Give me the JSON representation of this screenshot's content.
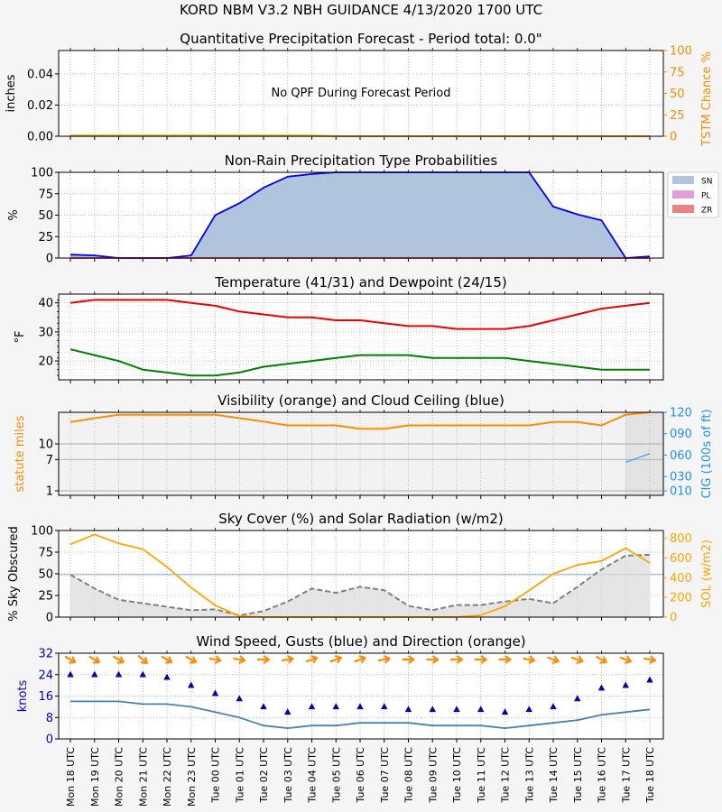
{
  "title": "KORD   NBM V3.2 NBH GUIDANCE    4/13/2020  1700 UTC",
  "x_labels": [
    "Mon 18 UTC",
    "Mon 19 UTC",
    "Mon 20 UTC",
    "Mon 21 UTC",
    "Mon 22 UTC",
    "Mon 23 UTC",
    "Tue 00 UTC",
    "Tue 01 UTC",
    "Tue 02 UTC",
    "Tue 03 UTC",
    "Tue 04 UTC",
    "Tue 05 UTC",
    "Tue 06 UTC",
    "Tue 07 UTC",
    "Tue 08 UTC",
    "Tue 09 UTC",
    "Tue 10 UTC",
    "Tue 11 UTC",
    "Tue 12 UTC",
    "Tue 13 UTC",
    "Tue 14 UTC",
    "Tue 15 UTC",
    "Tue 16 UTC",
    "Tue 17 UTC",
    "Tue 18 UTC"
  ],
  "colors": {
    "red": "#ee0000",
    "green": "#008000",
    "blue": "#0000ee",
    "orange": "#ff8c00",
    "steel": "#4682b4",
    "sn": "#b0c4de",
    "pl": "#dda0dd",
    "zr": "#f08080",
    "dodger": "#1e90ff",
    "grey": "#808080"
  },
  "chart_data": [
    {
      "type": "line",
      "title": "Quantitative Precipitation Forecast - Period total: 0.0\"",
      "ylabel": "inches",
      "y2label": "TSTM Chance %",
      "ylim": [
        0,
        0.055
      ],
      "y2lim": [
        0,
        100
      ],
      "yticks": [
        "0.00",
        "0.02",
        "0.04"
      ],
      "y2ticks": [
        "0",
        "25",
        "50",
        "75",
        "100"
      ],
      "annotation": "No QPF During Forecast Period",
      "series": [
        {
          "values": [
            0,
            0,
            0,
            0,
            0,
            0,
            0,
            0,
            0,
            0,
            0,
            0,
            0,
            0,
            0,
            0,
            0,
            0,
            0,
            0,
            0,
            0,
            0,
            0,
            0
          ]
        },
        {
          "values": [
            1,
            1,
            1,
            1,
            1,
            1,
            1,
            1,
            1,
            1,
            1,
            0,
            0,
            0,
            0,
            0,
            0,
            0,
            0,
            0,
            0,
            0,
            0,
            0,
            0
          ]
        }
      ]
    },
    {
      "type": "area",
      "title": "Non-Rain Precipitation Type Probabilities",
      "ylabel": "%",
      "ylim": [
        0,
        100
      ],
      "yticks": [
        "0",
        "25",
        "50",
        "75",
        "100"
      ],
      "legend": [
        "SN",
        "PL",
        "ZR"
      ],
      "series": [
        {
          "name": "SN",
          "values": [
            4,
            3,
            0,
            0,
            0,
            3,
            50,
            64,
            82,
            95,
            98,
            100,
            100,
            100,
            100,
            100,
            100,
            100,
            100,
            100,
            60,
            51,
            44,
            0,
            2
          ]
        },
        {
          "name": "PL",
          "values": [
            0,
            0,
            0,
            0,
            0,
            0,
            0,
            0,
            0,
            0,
            0,
            0,
            0,
            0,
            0,
            0,
            0,
            0,
            0,
            0,
            0,
            0,
            0,
            0,
            0
          ]
        },
        {
          "name": "ZR",
          "values": [
            0,
            0,
            0,
            0,
            0,
            0,
            0,
            0,
            0,
            0,
            0,
            0,
            0,
            0,
            0,
            0,
            0,
            0,
            0,
            0,
            0,
            0,
            0,
            0,
            0
          ]
        }
      ]
    },
    {
      "type": "line",
      "title": "Temperature (41/31) and Dewpoint (24/15)",
      "ylabel": "°F",
      "ylim": [
        13.5,
        43
      ],
      "yticks": [
        "20",
        "30",
        "40"
      ],
      "series": [
        {
          "values": [
            40,
            41,
            41,
            41,
            41,
            40,
            39,
            37,
            36,
            35,
            35,
            34,
            34,
            33,
            32,
            32,
            31,
            31,
            31,
            32,
            34,
            36,
            38,
            39,
            40
          ]
        },
        {
          "values": [
            24,
            22,
            20,
            17,
            16,
            15,
            15,
            16,
            18,
            19,
            20,
            21,
            22,
            22,
            22,
            21,
            21,
            21,
            21,
            20,
            19,
            18,
            17,
            17,
            17
          ]
        }
      ]
    },
    {
      "type": "line",
      "title": "Visibility (orange) and Cloud Ceiling (blue)",
      "ylabel": "statute miles",
      "y2label": "CIG (100s of ft)",
      "yticks": [
        "1",
        "7",
        "10"
      ],
      "y2ticks": [
        "010",
        "030",
        "060",
        "090",
        "120"
      ],
      "series": [
        {
          "name": "VIS",
          "values": [
            14.5,
            15.3,
            16,
            16,
            16,
            16,
            16,
            15.3,
            14.6,
            13.8,
            13.8,
            13.8,
            13.1,
            13.1,
            13.8,
            13.8,
            13.8,
            13.8,
            13.8,
            13.8,
            14.5,
            14.5,
            13.8,
            16,
            16.5
          ]
        },
        {
          "name": "CIG",
          "values": [
            null,
            null,
            null,
            null,
            null,
            null,
            null,
            null,
            null,
            null,
            null,
            null,
            null,
            null,
            null,
            null,
            null,
            null,
            null,
            null,
            null,
            null,
            null,
            50,
            62
          ]
        }
      ]
    },
    {
      "type": "line",
      "title": "Sky Cover (%) and Solar Radiation (w/m2)",
      "ylabel": "% Sky Obscured",
      "y2label": "SOL (w/m2)",
      "ylim": [
        0,
        100
      ],
      "y2lim": [
        0,
        880
      ],
      "yticks": [
        "0",
        "25",
        "50",
        "75",
        "100"
      ],
      "y2ticks": [
        "0",
        "200",
        "400",
        "600",
        "800"
      ],
      "series": [
        {
          "name": "SKY",
          "values": [
            49,
            33,
            20,
            16,
            12,
            8,
            9,
            2,
            7,
            18,
            33,
            28,
            35,
            31,
            13,
            8,
            14,
            14,
            18,
            21,
            16,
            35,
            55,
            71,
            72
          ]
        },
        {
          "name": "SOL",
          "values": [
            740,
            840,
            750,
            690,
            510,
            300,
            120,
            10,
            0,
            0,
            0,
            0,
            0,
            0,
            0,
            0,
            0,
            20,
            110,
            270,
            440,
            530,
            570,
            700,
            550
          ]
        }
      ]
    },
    {
      "type": "scatter",
      "title": "Wind Speed, Gusts (blue) and Direction (orange)",
      "ylabel": "knots",
      "ylim": [
        0,
        32
      ],
      "yticks": [
        "0",
        "8",
        "16",
        "24",
        "32"
      ],
      "series": [
        {
          "name": "Speed",
          "values": [
            14,
            14,
            14,
            13,
            13,
            12,
            10,
            8,
            5,
            4,
            5,
            5,
            6,
            6,
            6,
            5,
            5,
            5,
            4,
            5,
            6,
            7,
            9,
            10,
            11
          ]
        },
        {
          "name": "Gust",
          "values": [
            24,
            24,
            24,
            24,
            23,
            20,
            17,
            15,
            12,
            10,
            12,
            12,
            12,
            12,
            11,
            11,
            11,
            11,
            10,
            11,
            12,
            15,
            19,
            20,
            22
          ]
        },
        {
          "name": "Direction",
          "values": [
            300,
            300,
            300,
            310,
            300,
            300,
            280,
            280,
            270,
            260,
            250,
            250,
            250,
            260,
            270,
            270,
            270,
            270,
            270,
            280,
            290,
            290,
            300,
            290,
            280
          ]
        }
      ]
    }
  ]
}
